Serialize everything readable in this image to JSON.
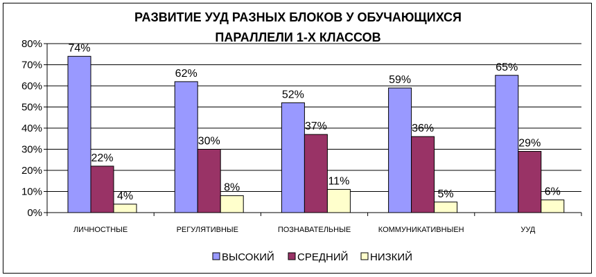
{
  "chart_data": {
    "type": "bar",
    "title_lines": [
      "РАЗВИТИЕ УУД РАЗНЫХ БЛОКОВ У ОБУЧАЮЩИХСЯ",
      "ПАРАЛЛЕЛИ 1-Х КЛАССОВ"
    ],
    "categories": [
      "ЛИЧНОСТНЫЕ",
      "РЕГУЛЯТИВНЫЕ",
      "ПОЗНАВАТЕЛЬНЫЕ",
      "КОММУНИКАТИВНЫЕН",
      "УУД"
    ],
    "series": [
      {
        "name": "ВЫСОКИЙ",
        "color": "#9999ff",
        "values": [
          74,
          62,
          52,
          59,
          65
        ],
        "labels": [
          "74%",
          "62%",
          "52%",
          "59%",
          "65%"
        ]
      },
      {
        "name": "СРЕДНИЙ",
        "color": "#993366",
        "values": [
          22,
          30,
          37,
          36,
          29
        ],
        "labels": [
          "22%",
          "30%",
          "37%",
          "36%",
          "29%"
        ]
      },
      {
        "name": "НИЗКИЙ",
        "color": "#ffffcc",
        "values": [
          4,
          8,
          11,
          5,
          6
        ],
        "labels": [
          "4%",
          "8%",
          "11%",
          "5%",
          "6%"
        ]
      }
    ],
    "ylim": [
      0,
      80
    ],
    "yticks": [
      0,
      10,
      20,
      30,
      40,
      50,
      60,
      70,
      80
    ],
    "ytick_labels": [
      "0%",
      "10%",
      "20%",
      "30%",
      "40%",
      "50%",
      "60%",
      "70%",
      "80%"
    ],
    "grid": true,
    "legend_position": "bottom"
  }
}
